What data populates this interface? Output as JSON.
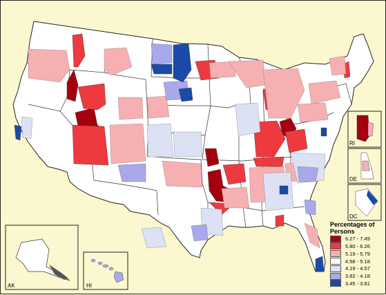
{
  "map": {
    "insets": {
      "ak": "AK",
      "hi": "HI",
      "ri": "RI",
      "de": "DE",
      "dc": "DC"
    },
    "legend": {
      "title": "Percentages of Persons",
      "items": [
        {
          "label": "6.27 - 7.49",
          "color": "#a50010"
        },
        {
          "label": "5.80 - 6.26",
          "color": "#ee3a3e"
        },
        {
          "label": "5.19 - 5.79",
          "color": "#f6b0b2"
        },
        {
          "label": "4.58 - 5.18",
          "color": "#ffffff"
        },
        {
          "label": "4.19 - 4.57",
          "color": "#dde1f4"
        },
        {
          "label": "3.82 - 4.18",
          "color": "#a9a8ea"
        },
        {
          "label": "3.45 - 3.81",
          "color": "#1c4aa8"
        }
      ]
    },
    "colors": {
      "background": "#fbf7cf",
      "land": "#ffffff",
      "border": "#222222"
    }
  }
}
